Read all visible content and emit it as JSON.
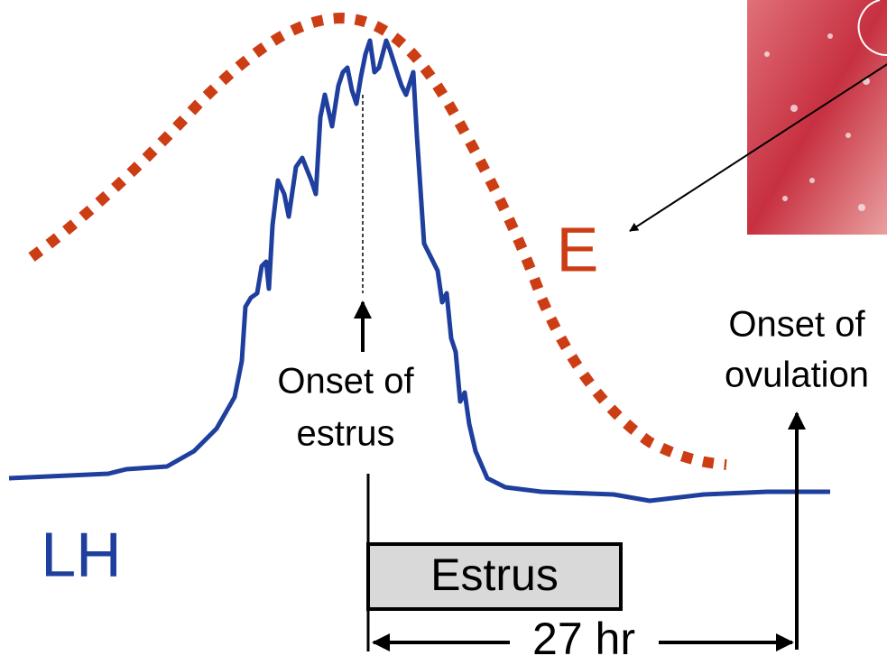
{
  "labels": {
    "estrogen": "E",
    "lh": "LH",
    "onset_estrus": [
      "Onset of",
      "estrus"
    ],
    "onset_ovulation": [
      "Onset of",
      "ovulation"
    ],
    "estrus_box": "Estrus",
    "duration": "27 hr"
  }
}
